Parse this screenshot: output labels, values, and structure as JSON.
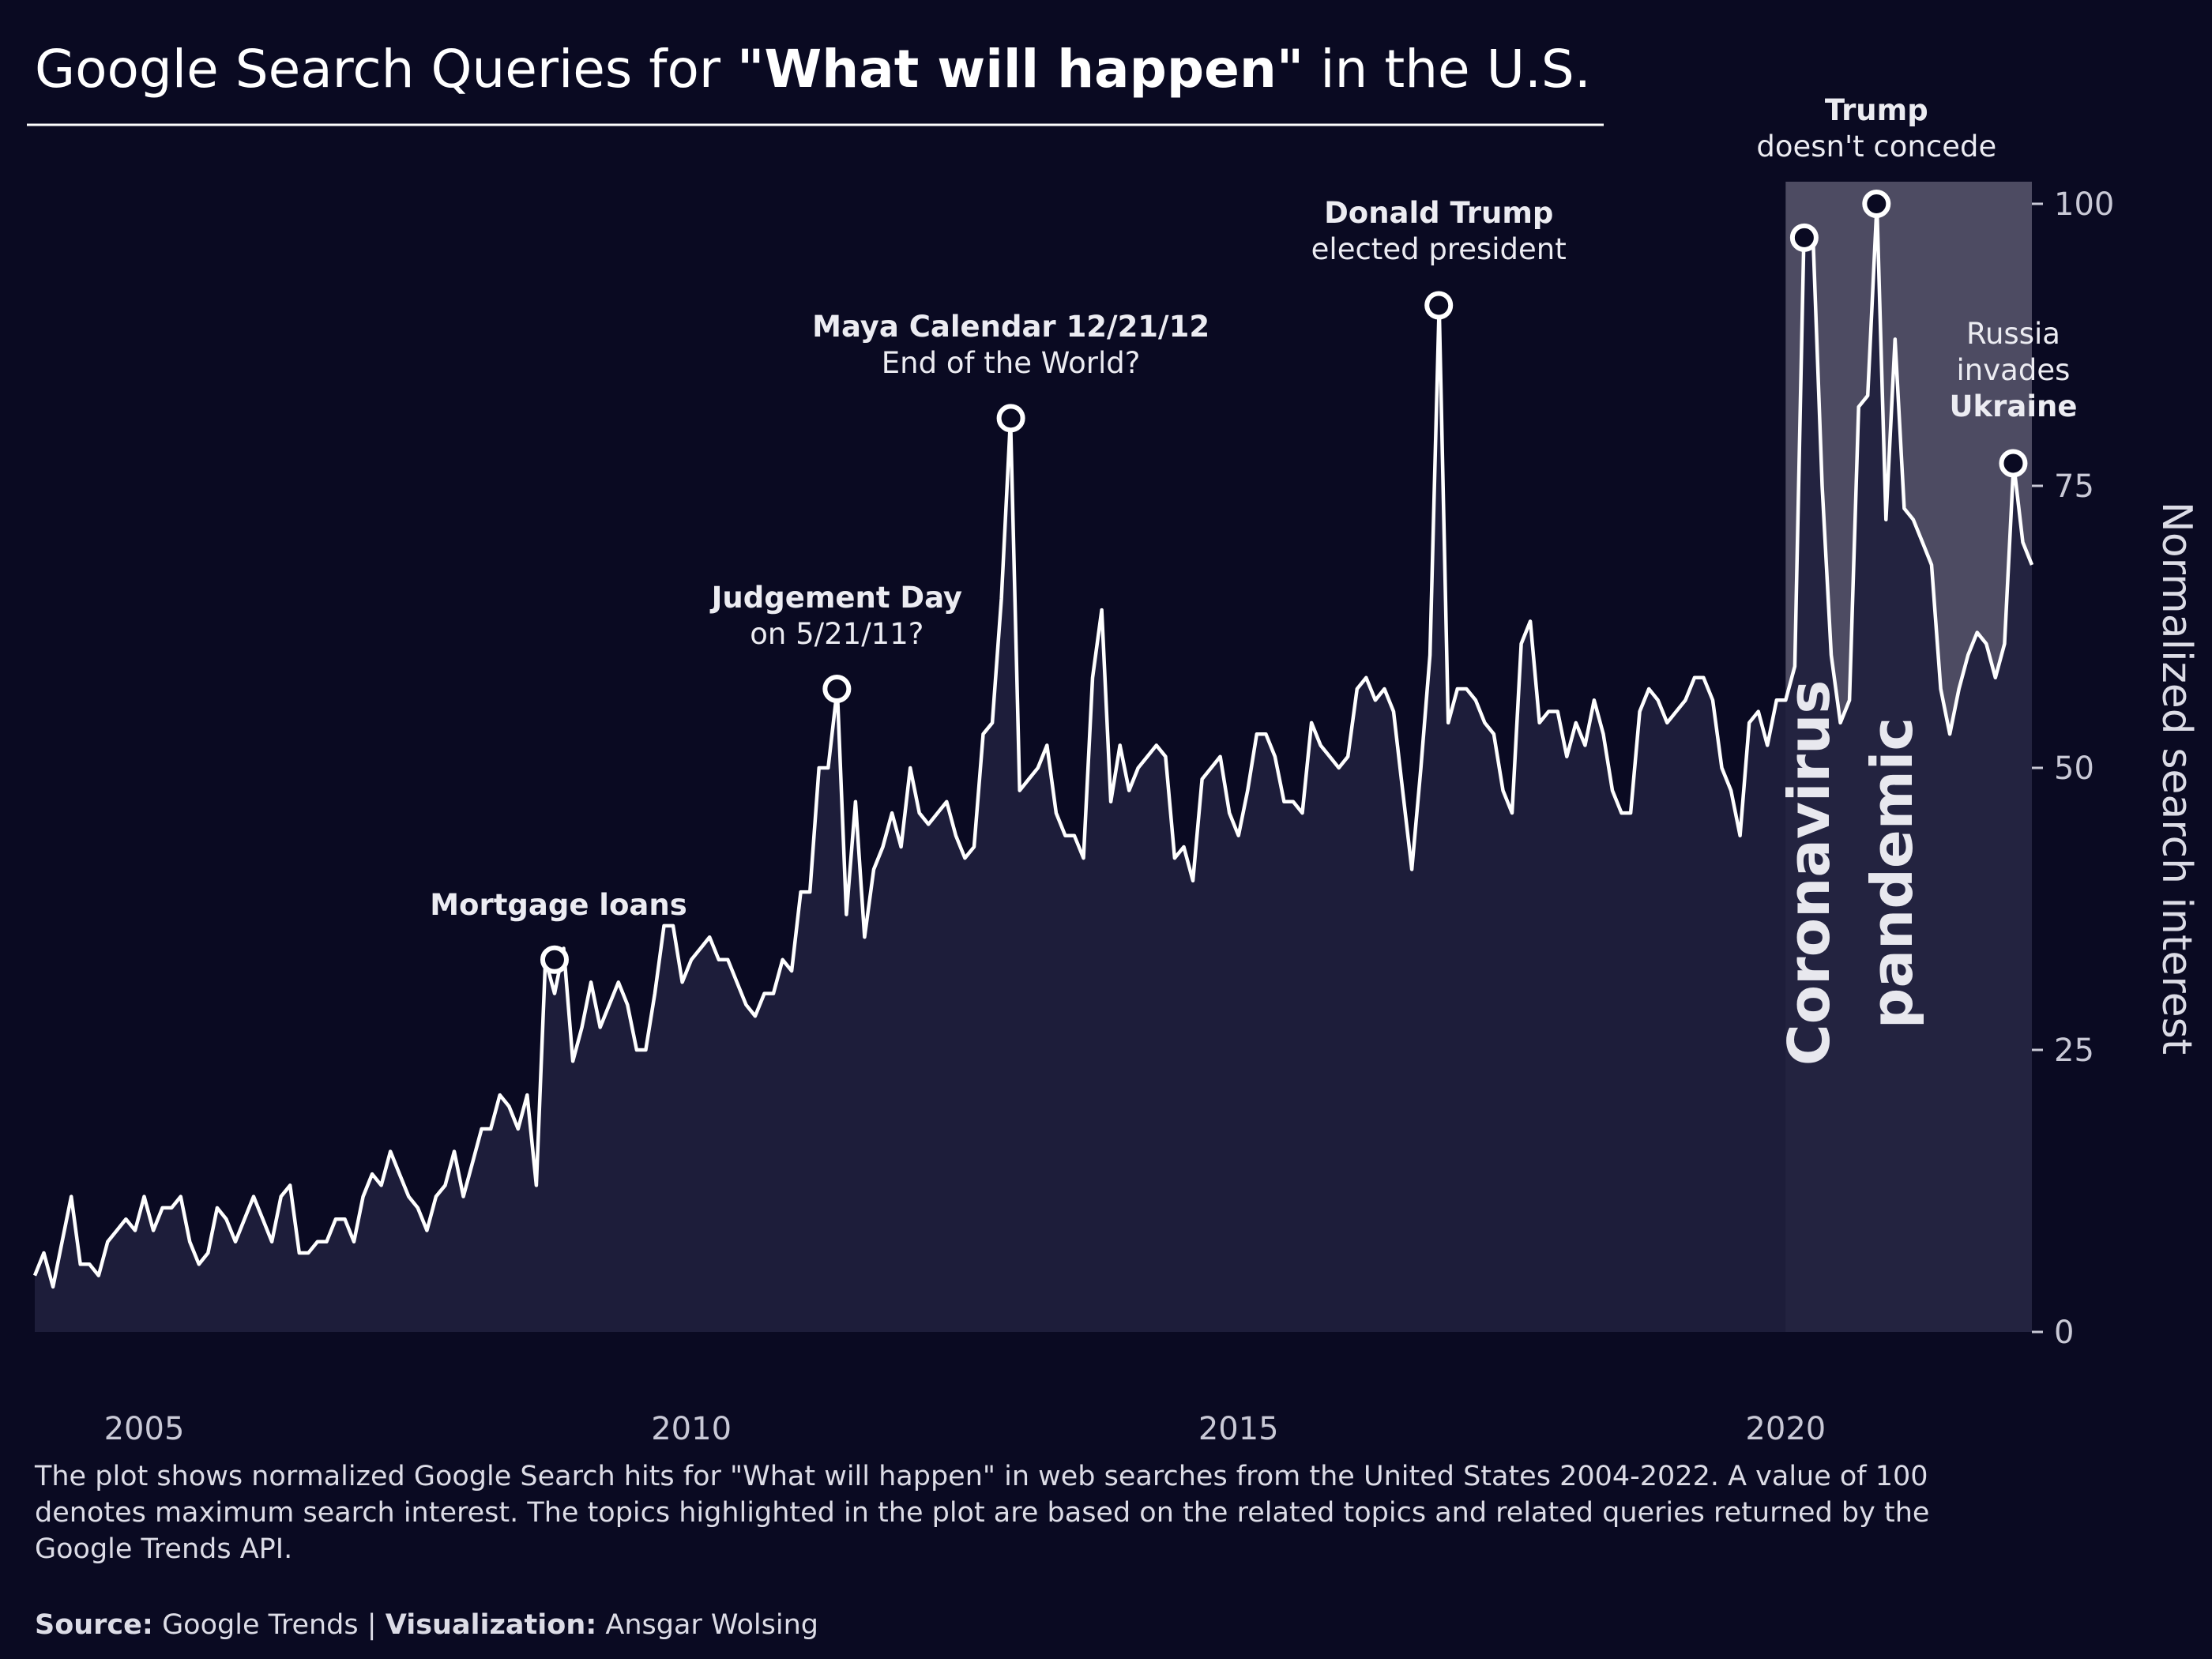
{
  "title": {
    "prefix": "Google Search Queries for ",
    "highlight": "\"What will happen\"",
    "suffix": " in the U.S."
  },
  "colors": {
    "background": "#0a0a22",
    "line": "#ffffff",
    "area": "#201f3d",
    "pandemic_band": "#4d4b62",
    "text": "#ececf2"
  },
  "chart_data": {
    "type": "line",
    "title": "Google Search Queries for \"What will happen\" in the U.S.",
    "xlabel": "",
    "ylabel": "Normalized search interest",
    "xlim": [
      2004.0,
      2022.25
    ],
    "ylim": [
      0,
      100
    ],
    "xticks": [
      2005,
      2010,
      2015,
      2020
    ],
    "yticks": [
      0,
      25,
      50,
      75,
      100
    ],
    "series": [
      {
        "name": "What will happen",
        "start": 2004.0,
        "step_months": 1,
        "values": [
          5,
          7,
          4,
          8,
          12,
          6,
          6,
          5,
          8,
          9,
          10,
          9,
          12,
          9,
          11,
          11,
          12,
          8,
          6,
          7,
          11,
          10,
          8,
          10,
          12,
          10,
          8,
          12,
          13,
          7,
          7,
          8,
          8,
          10,
          10,
          8,
          12,
          14,
          13,
          16,
          14,
          12,
          11,
          9,
          12,
          13,
          16,
          12,
          15,
          18,
          18,
          21,
          20,
          18,
          21,
          13,
          33,
          30,
          34,
          24,
          27,
          31,
          27,
          29,
          31,
          29,
          25,
          25,
          30,
          36,
          36,
          31,
          33,
          34,
          35,
          33,
          33,
          31,
          29,
          28,
          30,
          30,
          33,
          32,
          39,
          39,
          50,
          50,
          57,
          37,
          47,
          35,
          41,
          43,
          46,
          43,
          50,
          46,
          45,
          46,
          47,
          44,
          42,
          43,
          53,
          54,
          65,
          81,
          48,
          49,
          50,
          52,
          46,
          44,
          44,
          42,
          58,
          64,
          47,
          52,
          48,
          50,
          51,
          52,
          51,
          42,
          43,
          40,
          49,
          50,
          51,
          46,
          44,
          48,
          53,
          53,
          51,
          47,
          47,
          46,
          54,
          52,
          51,
          50,
          51,
          57,
          58,
          56,
          57,
          55,
          48,
          41,
          50,
          60,
          91,
          54,
          57,
          57,
          56,
          54,
          53,
          48,
          46,
          61,
          63,
          54,
          55,
          55,
          51,
          54,
          52,
          56,
          53,
          48,
          46,
          46,
          55,
          57,
          56,
          54,
          55,
          56,
          58,
          58,
          56,
          50,
          48,
          44,
          54,
          55,
          52,
          56,
          56,
          59,
          97,
          97,
          75,
          60,
          54,
          56,
          82,
          83,
          100,
          72,
          88,
          73,
          72,
          70,
          68,
          57,
          53,
          57,
          60,
          62,
          61,
          58,
          61,
          77,
          70,
          68
        ]
      }
    ],
    "shaded_region": {
      "label": "Coronavirus pandemic",
      "x_start": 2020.0,
      "x_end": 2022.25
    },
    "annotations": [
      {
        "x": 2008.75,
        "y": 33,
        "bold": "Mortgage loans",
        "normal": ""
      },
      {
        "x": 2011.33,
        "y": 57,
        "bold": "Judgement Day",
        "normal": "on 5/21/11?"
      },
      {
        "x": 2012.92,
        "y": 81,
        "bold": "Maya Calendar 12/21/12",
        "normal": "End of the World?"
      },
      {
        "x": 2016.83,
        "y": 91,
        "bold": "Donald Trump",
        "normal": "elected president"
      },
      {
        "x": 2020.17,
        "y": 97,
        "bold": "",
        "normal": ""
      },
      {
        "x": 2020.83,
        "y": 100,
        "bold": "Trump",
        "normal": "doesn't concede"
      },
      {
        "x": 2022.08,
        "y": 77,
        "bold": "Ukraine",
        "normal": "Russia invades"
      }
    ]
  },
  "pandemic_label": {
    "line1": "Coronavirus",
    "line2": "pandemic"
  },
  "russia_label": {
    "line1": "Russia",
    "line2": "invades",
    "line3": "Ukraine"
  },
  "caption": "The plot shows normalized Google Search hits for \"What will happen\" in web searches from the United States 2004-2022. A value of 100 denotes maximum search interest. The topics highlighted in the plot are based on the related topics and related queries returned by the Google Trends API.",
  "source": {
    "source_label": "Source:",
    "source_value": "Google Trends",
    "separator": "|",
    "viz_label": "Visualization:",
    "viz_value": "Ansgar Wolsing"
  }
}
